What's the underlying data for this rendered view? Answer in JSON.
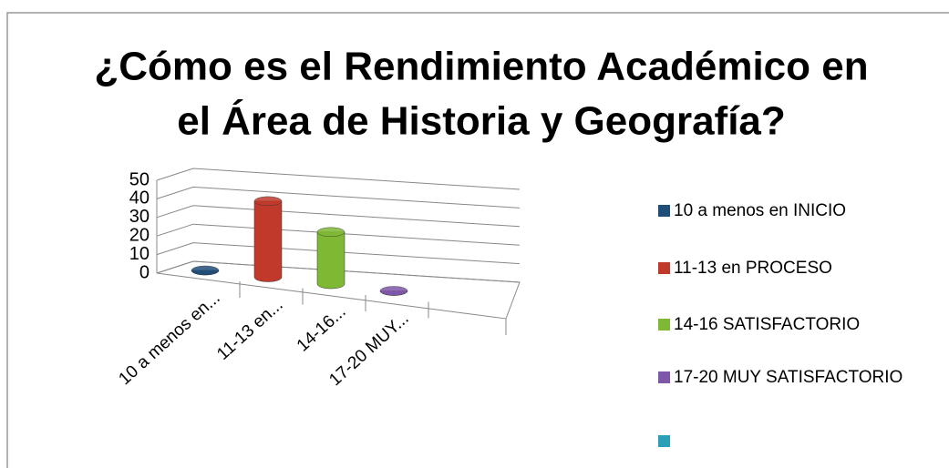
{
  "chart_data": {
    "type": "bar3d",
    "title": [
      "¿Cómo es el Rendimiento Académico en",
      "el Área de  Historia y Geografía?"
    ],
    "categories": [
      "10 a menos en...",
      "11-13 en...",
      "14-16...",
      "17-20 MUY..."
    ],
    "values": [
      0,
      38,
      26,
      0
    ],
    "colors": [
      "#1f4e79",
      "#c0392b",
      "#7fb832",
      "#7e57a8"
    ],
    "legend": [
      "10 a menos en INICIO",
      "11-13 en PROCESO",
      "14-16 SATISFACTORIO",
      "17-20 MUY SATISFACTORIO"
    ],
    "ylim": [
      0,
      50
    ],
    "yticks": [
      0,
      10,
      20,
      30,
      40,
      50
    ],
    "grid": true
  }
}
